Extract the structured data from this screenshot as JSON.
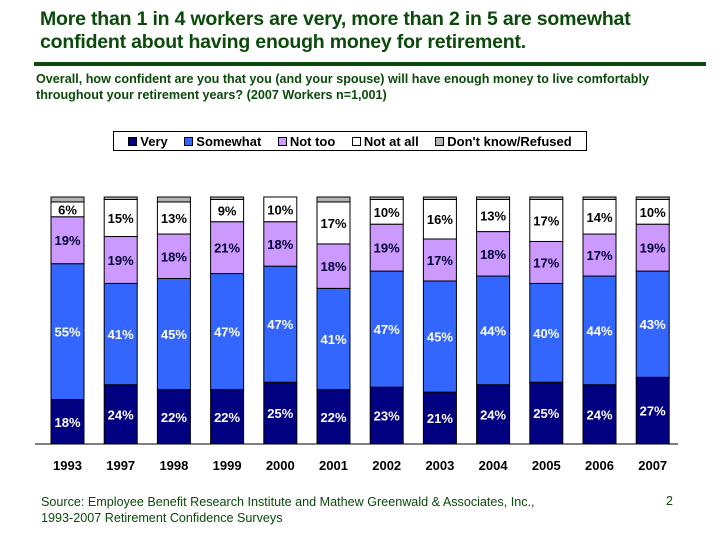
{
  "slide": {
    "title": "More than 1 in 4 workers are very, more than 2 in 5 are somewhat confident about having enough money for retirement.",
    "subtitle": "Overall, how confident are you that you (and your spouse) will have enough money to live comfortably throughout your retirement years? (2007 Workers n=1,001)",
    "source_line1": "Source: Employee Benefit Research Institute and Mathew Greenwald & Associates, Inc.,",
    "source_line2": "1993-2007 Retirement Confidence Surveys",
    "page_number": "2"
  },
  "chart_data": {
    "type": "bar",
    "stacked": true,
    "title": "",
    "xlabel": "",
    "ylabel": "",
    "ylim": [
      0,
      100
    ],
    "grid": false,
    "legend_position": "top",
    "categories": [
      "1993",
      "1997",
      "1998",
      "1999",
      "2000",
      "2001",
      "2002",
      "2003",
      "2004",
      "2005",
      "2006",
      "2007"
    ],
    "series": [
      {
        "name": "Very",
        "color": "#000080",
        "label_color": "#ffffff",
        "values": [
          18,
          24,
          22,
          22,
          25,
          22,
          23,
          21,
          24,
          25,
          24,
          27
        ]
      },
      {
        "name": "Somewhat",
        "color": "#3366ff",
        "label_color": "#ffffff",
        "values": [
          55,
          41,
          45,
          47,
          47,
          41,
          47,
          45,
          44,
          40,
          44,
          43
        ]
      },
      {
        "name": "Not too",
        "color": "#cc99ff",
        "label_color": "#000033",
        "values": [
          19,
          19,
          18,
          21,
          18,
          18,
          19,
          17,
          18,
          17,
          17,
          19
        ]
      },
      {
        "name": "Not at all",
        "color": "#ffffff",
        "label_color": "#000000",
        "values": [
          6,
          15,
          13,
          9,
          10,
          17,
          10,
          16,
          13,
          17,
          14,
          10
        ]
      },
      {
        "name": "Don't know/Refused",
        "color": "#b3b3b3",
        "label_color": "#000000",
        "values": [
          2,
          1,
          2,
          1,
          0,
          2,
          1,
          1,
          1,
          1,
          1,
          1
        ]
      }
    ],
    "show_labels_for": [
      "Very",
      "Somewhat",
      "Not too",
      "Not at all"
    ]
  }
}
